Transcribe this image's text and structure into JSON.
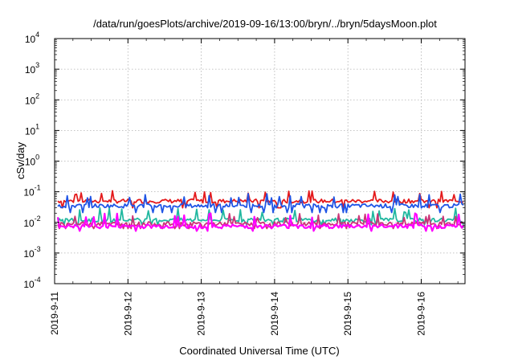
{
  "chart_data": {
    "type": "line",
    "title": "/data/run/goesPlots/archive/2019-09-16/13:00/bryn/../bryn/5daysMoon.plot",
    "xlabel": "Coordinated Universal Time (UTC)",
    "ylabel": "cSv/day",
    "yscale": "log",
    "ylim": [
      0.0001,
      10000
    ],
    "xlim": [
      "2019-09-11 00:00",
      "2019-09-16 13:00"
    ],
    "grid": true,
    "x_ticks": [
      "2019-9-11",
      "2019-9-12",
      "2019-9-13",
      "2019-9-14",
      "2019-9-15",
      "2019-9-16"
    ],
    "y_ticks": [
      {
        "base": "10",
        "exp": "-4"
      },
      {
        "base": "10",
        "exp": "-3"
      },
      {
        "base": "10",
        "exp": "-2"
      },
      {
        "base": "10",
        "exp": "-1"
      },
      {
        "base": "10",
        "exp": "0"
      },
      {
        "base": "10",
        "exp": "1"
      },
      {
        "base": "10",
        "exp": "2"
      },
      {
        "base": "10",
        "exp": "3"
      },
      {
        "base": "10",
        "exp": "4"
      }
    ],
    "series": [
      {
        "color": "#e41a1c",
        "base": 0.05,
        "spike_max": 0.11
      },
      {
        "color": "#1f55e6",
        "base": 0.035,
        "spike_max": 0.09
      },
      {
        "color": "#22b8a0",
        "base": 0.012,
        "spike_max": 0.03
      },
      {
        "color": "#cc3377",
        "base": 0.009,
        "spike_max": 0.02
      },
      {
        "color": "#ff00ff",
        "base": 0.0075,
        "spike_max": 0.02
      }
    ]
  }
}
